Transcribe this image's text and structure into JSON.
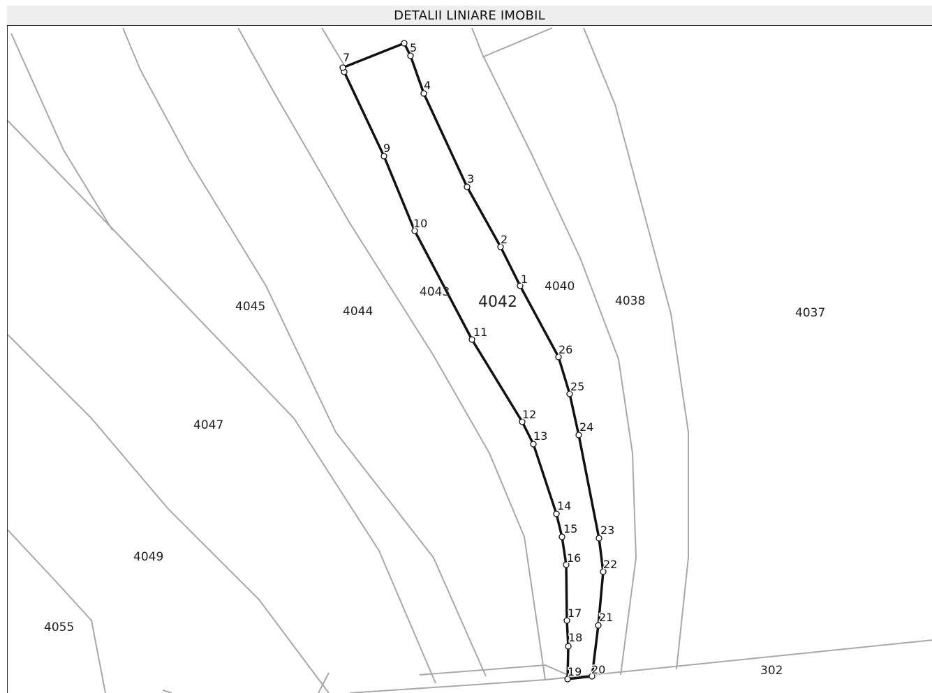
{
  "window": {
    "title": "DETALII LINIARE IMOBIL"
  },
  "map": {
    "main_parcel": "4042",
    "parcels": [
      "4055",
      "4049",
      "4047",
      "4045",
      "4044",
      "4043",
      "4040",
      "4038",
      "4037",
      "302"
    ],
    "vertices": [
      "1",
      "2",
      "3",
      "4",
      "5",
      "7",
      "9",
      "10",
      "11",
      "12",
      "13",
      "14",
      "15",
      "16",
      "17",
      "18",
      "19",
      "20",
      "21",
      "22",
      "23",
      "24",
      "25",
      "26"
    ]
  }
}
